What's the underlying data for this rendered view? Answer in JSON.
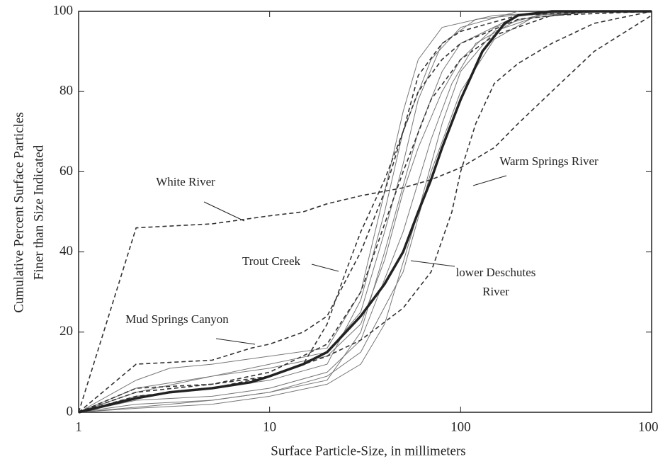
{
  "chart_data": {
    "type": "line",
    "x_label": "Surface Particle-Size, in millimeters",
    "y_label": [
      "Cumulative Percent Surface Particles",
      "Finer than Size Indicated"
    ],
    "xlog": true,
    "xlim": [
      1,
      1000
    ],
    "xticks": [
      1,
      10,
      100,
      1000
    ],
    "ylim": [
      0,
      100
    ],
    "yticks": [
      0,
      20,
      40,
      60,
      80,
      100
    ],
    "series": [
      {
        "color": "#777",
        "style": "solid",
        "x": [
          1,
          2,
          3,
          5,
          10,
          20,
          30,
          40,
          50,
          60,
          80,
          150,
          400
        ],
        "values": [
          0,
          8,
          11,
          12,
          14,
          16,
          30,
          55,
          75,
          88,
          96,
          99,
          100
        ]
      },
      {
        "color": "#777",
        "style": "solid",
        "x": [
          1,
          2,
          5,
          10,
          20,
          30,
          40,
          50,
          70,
          100,
          200
        ],
        "values": [
          0,
          4,
          6,
          8,
          12,
          28,
          50,
          70,
          88,
          96,
          100
        ]
      },
      {
        "color": "#777",
        "style": "solid",
        "x": [
          1,
          2,
          5,
          10,
          20,
          30,
          40,
          60,
          80,
          100,
          200,
          500
        ],
        "values": [
          0,
          2,
          3,
          5,
          8,
          20,
          40,
          70,
          85,
          92,
          99,
          100
        ]
      },
      {
        "color": "#777",
        "style": "solid",
        "x": [
          1,
          2,
          5,
          10,
          20,
          30,
          50,
          70,
          90,
          120,
          200,
          500
        ],
        "values": [
          0,
          3,
          4,
          6,
          10,
          18,
          45,
          68,
          82,
          92,
          98,
          100
        ]
      },
      {
        "color": "#777",
        "style": "solid",
        "x": [
          1,
          2,
          5,
          10,
          20,
          30,
          40,
          50,
          60,
          80,
          120,
          300
        ],
        "values": [
          0,
          5,
          9,
          12,
          15,
          25,
          45,
          62,
          78,
          92,
          98,
          100
        ]
      },
      {
        "color": "#777",
        "style": "solid",
        "x": [
          1,
          2,
          5,
          10,
          20,
          30,
          40,
          60,
          80,
          100,
          150,
          300
        ],
        "values": [
          0,
          1,
          2,
          4,
          7,
          12,
          22,
          50,
          72,
          85,
          95,
          100
        ]
      },
      {
        "color": "#777",
        "style": "solid",
        "x": [
          1,
          3,
          5,
          10,
          20,
          30,
          50,
          70,
          100,
          150,
          250,
          600
        ],
        "values": [
          0,
          2,
          3,
          5,
          9,
          15,
          35,
          60,
          80,
          93,
          99,
          100
        ]
      },
      {
        "color": "#777",
        "style": "solid",
        "x": [
          1,
          2,
          5,
          10,
          20,
          30,
          40,
          50,
          60,
          80,
          100,
          150,
          300
        ],
        "values": [
          0,
          6,
          9,
          11,
          14,
          22,
          38,
          55,
          66,
          80,
          88,
          96,
          100
        ]
      },
      {
        "color": "#333",
        "style": "dashed",
        "x": [
          1,
          2,
          5,
          10,
          20,
          30,
          40,
          50,
          70,
          100,
          150,
          300,
          1000
        ],
        "values": [
          0,
          5,
          7,
          10,
          17,
          30,
          47,
          60,
          78,
          88,
          94,
          99,
          100
        ]
      },
      {
        "name": "White River",
        "color": "#333",
        "style": "dashed",
        "x": [
          1,
          2,
          5,
          10,
          15,
          20,
          30,
          50,
          70,
          100,
          150,
          200,
          300,
          500,
          1000
        ],
        "values": [
          0,
          46,
          47,
          49,
          50,
          52,
          54,
          56,
          58,
          61,
          66,
          72,
          80,
          90,
          99
        ]
      },
      {
        "name": "Trout Creek",
        "color": "#333",
        "style": "dashed",
        "x": [
          1,
          2,
          5,
          10,
          15,
          20,
          25,
          30,
          40,
          50,
          60,
          80,
          100,
          200,
          500
        ],
        "values": [
          0,
          6,
          7,
          9,
          12,
          22,
          35,
          45,
          58,
          70,
          80,
          88,
          92,
          98,
          100
        ]
      },
      {
        "name": "Mud Springs Canyon",
        "color": "#333",
        "style": "dashed",
        "x": [
          1,
          2,
          5,
          8,
          10,
          15,
          20,
          30,
          40,
          50,
          60,
          80,
          100,
          200,
          500
        ],
        "values": [
          0,
          12,
          13,
          16,
          17,
          20,
          24,
          40,
          55,
          70,
          84,
          92,
          95,
          99,
          100
        ]
      },
      {
        "name": "Warm Springs River",
        "color": "#333",
        "style": "dashed",
        "x": [
          1,
          2,
          5,
          10,
          20,
          30,
          50,
          70,
          90,
          100,
          120,
          150,
          200,
          300,
          500,
          1000
        ],
        "values": [
          0,
          4,
          6,
          9,
          14,
          18,
          26,
          35,
          50,
          60,
          72,
          82,
          87,
          92,
          97,
          100
        ]
      },
      {
        "name": "lower Deschutes River",
        "color": "#222",
        "style": "thick",
        "x": [
          1,
          2,
          3,
          5,
          8,
          10,
          15,
          20,
          30,
          40,
          50,
          60,
          70,
          80,
          100,
          130,
          170,
          200,
          300,
          500,
          1000
        ],
        "values": [
          0,
          3.5,
          5,
          6,
          7.5,
          9,
          12,
          15,
          24,
          32,
          40,
          50,
          58,
          66,
          78,
          90,
          97,
          99,
          100,
          100,
          100
        ]
      }
    ]
  }
}
